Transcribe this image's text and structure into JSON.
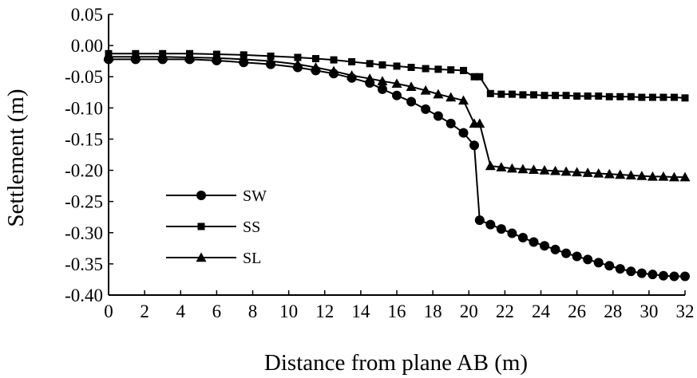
{
  "chart_data": {
    "type": "line",
    "title": "",
    "xlabel": "Distance from plane AB (m)",
    "ylabel": "Settlement (m)",
    "xlim": [
      0,
      32
    ],
    "ylim": [
      -0.4,
      0.05
    ],
    "x_ticks": [
      0,
      2,
      4,
      6,
      8,
      10,
      12,
      14,
      16,
      18,
      20,
      22,
      24,
      26,
      28,
      30,
      32
    ],
    "x_tick_labels": [
      "0",
      "2",
      "4",
      "6",
      "8",
      "10",
      "12",
      "14",
      "16",
      "18",
      "20",
      "22",
      "24",
      "26",
      "28",
      "30",
      "32"
    ],
    "y_ticks": [
      0.05,
      0.0,
      -0.05,
      -0.1,
      -0.15,
      -0.2,
      -0.25,
      -0.3,
      -0.35,
      -0.4
    ],
    "y_tick_labels": [
      "0.05",
      "0.00",
      "-0.05",
      "-0.10",
      "-0.15",
      "-0.20",
      "-0.25",
      "-0.30",
      "-0.35",
      "-0.40"
    ],
    "grid": false,
    "legend_position": "left-bottom",
    "colors": {
      "line": "#000000"
    },
    "series": [
      {
        "name": "SW",
        "marker": "circle",
        "x": [
          0,
          1.5,
          3,
          4.5,
          6,
          7.5,
          9,
          10.5,
          11.5,
          12.5,
          13.5,
          14.5,
          15.2,
          16,
          16.8,
          17.6,
          18.3,
          19,
          19.7,
          20.3,
          20.6,
          21.2,
          21.8,
          22.4,
          23,
          23.6,
          24.2,
          24.8,
          25.4,
          26,
          26.6,
          27.2,
          27.8,
          28.4,
          29,
          29.6,
          30.2,
          30.8,
          31.4,
          32
        ],
        "y": [
          -0.022,
          -0.022,
          -0.022,
          -0.022,
          -0.024,
          -0.027,
          -0.03,
          -0.035,
          -0.04,
          -0.045,
          -0.052,
          -0.06,
          -0.07,
          -0.08,
          -0.09,
          -0.102,
          -0.113,
          -0.125,
          -0.14,
          -0.16,
          -0.28,
          -0.287,
          -0.294,
          -0.301,
          -0.308,
          -0.315,
          -0.321,
          -0.327,
          -0.333,
          -0.338,
          -0.343,
          -0.348,
          -0.353,
          -0.358,
          -0.362,
          -0.365,
          -0.367,
          -0.369,
          -0.37,
          -0.37
        ]
      },
      {
        "name": "SS",
        "marker": "square",
        "x": [
          0,
          1.5,
          3,
          4.5,
          6,
          7.5,
          9,
          10.5,
          11.5,
          12.5,
          13.5,
          14.5,
          15.2,
          16,
          16.8,
          17.6,
          18.3,
          19,
          19.7,
          20.3,
          20.6,
          21.2,
          21.8,
          22.4,
          23,
          23.6,
          24.2,
          24.8,
          25.4,
          26,
          26.6,
          27.2,
          27.8,
          28.4,
          29,
          29.6,
          30.2,
          30.8,
          31.4,
          32
        ],
        "y": [
          -0.013,
          -0.013,
          -0.013,
          -0.013,
          -0.014,
          -0.015,
          -0.017,
          -0.019,
          -0.021,
          -0.023,
          -0.026,
          -0.029,
          -0.031,
          -0.033,
          -0.035,
          -0.037,
          -0.038,
          -0.039,
          -0.04,
          -0.05,
          -0.05,
          -0.077,
          -0.078,
          -0.078,
          -0.079,
          -0.079,
          -0.08,
          -0.08,
          -0.08,
          -0.081,
          -0.081,
          -0.081,
          -0.082,
          -0.082,
          -0.082,
          -0.083,
          -0.083,
          -0.083,
          -0.083,
          -0.084
        ]
      },
      {
        "name": "SL",
        "marker": "triangle",
        "x": [
          0,
          1.5,
          3,
          4.5,
          6,
          7.5,
          9,
          10.5,
          11.5,
          12.5,
          13.5,
          14.5,
          15.2,
          16,
          16.8,
          17.6,
          18.3,
          19,
          19.7,
          20.3,
          20.6,
          21.2,
          21.8,
          22.4,
          23,
          23.6,
          24.2,
          24.8,
          25.4,
          26,
          26.6,
          27.2,
          27.8,
          28.4,
          29,
          29.6,
          30.2,
          30.8,
          31.4,
          32
        ],
        "y": [
          -0.018,
          -0.018,
          -0.018,
          -0.019,
          -0.02,
          -0.022,
          -0.025,
          -0.03,
          -0.035,
          -0.041,
          -0.048,
          -0.053,
          -0.057,
          -0.061,
          -0.066,
          -0.072,
          -0.078,
          -0.083,
          -0.088,
          -0.125,
          -0.125,
          -0.193,
          -0.195,
          -0.197,
          -0.198,
          -0.199,
          -0.2,
          -0.201,
          -0.202,
          -0.203,
          -0.204,
          -0.205,
          -0.206,
          -0.207,
          -0.208,
          -0.209,
          -0.21,
          -0.21,
          -0.211,
          -0.211
        ]
      }
    ]
  }
}
